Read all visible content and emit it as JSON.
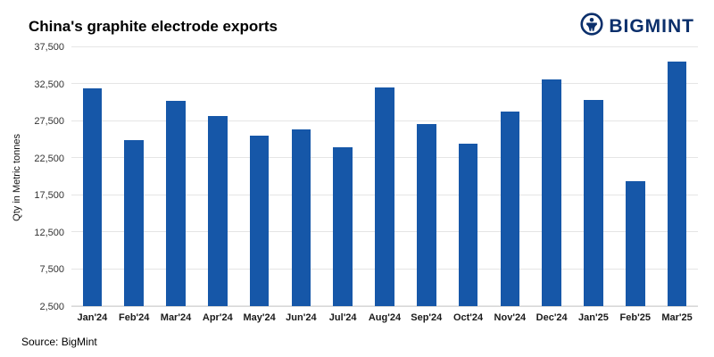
{
  "header": {
    "title": "China's graphite electrode exports",
    "brand": "BIGMINT"
  },
  "footer": {
    "source": "Source: BigMint"
  },
  "colors": {
    "bar": "#1657a8",
    "brand_navy": "#0b2f6b",
    "gridline": "#e5e5e5"
  },
  "chart_data": {
    "type": "bar",
    "title": "China's graphite electrode exports",
    "xlabel": "",
    "ylabel": "Qty in Metric tonnes",
    "ylim": [
      2500,
      37500
    ],
    "yticks": [
      2500,
      7500,
      12500,
      17500,
      22500,
      27500,
      32500,
      37500
    ],
    "grid": true,
    "legend": false,
    "bar_color": "#1657a8",
    "categories": [
      "Jan'24",
      "Feb'24",
      "Mar'24",
      "Apr'24",
      "May'24",
      "Jun'24",
      "Jul'24",
      "Aug'24",
      "Sep'24",
      "Oct'24",
      "Nov'24",
      "Dec'24",
      "Jan'25",
      "Feb'25",
      "Mar'25"
    ],
    "values": [
      32000,
      25000,
      30300,
      28200,
      25500,
      26400,
      24000,
      32100,
      27100,
      24500,
      28800,
      33100,
      30400,
      19400,
      35600
    ]
  }
}
